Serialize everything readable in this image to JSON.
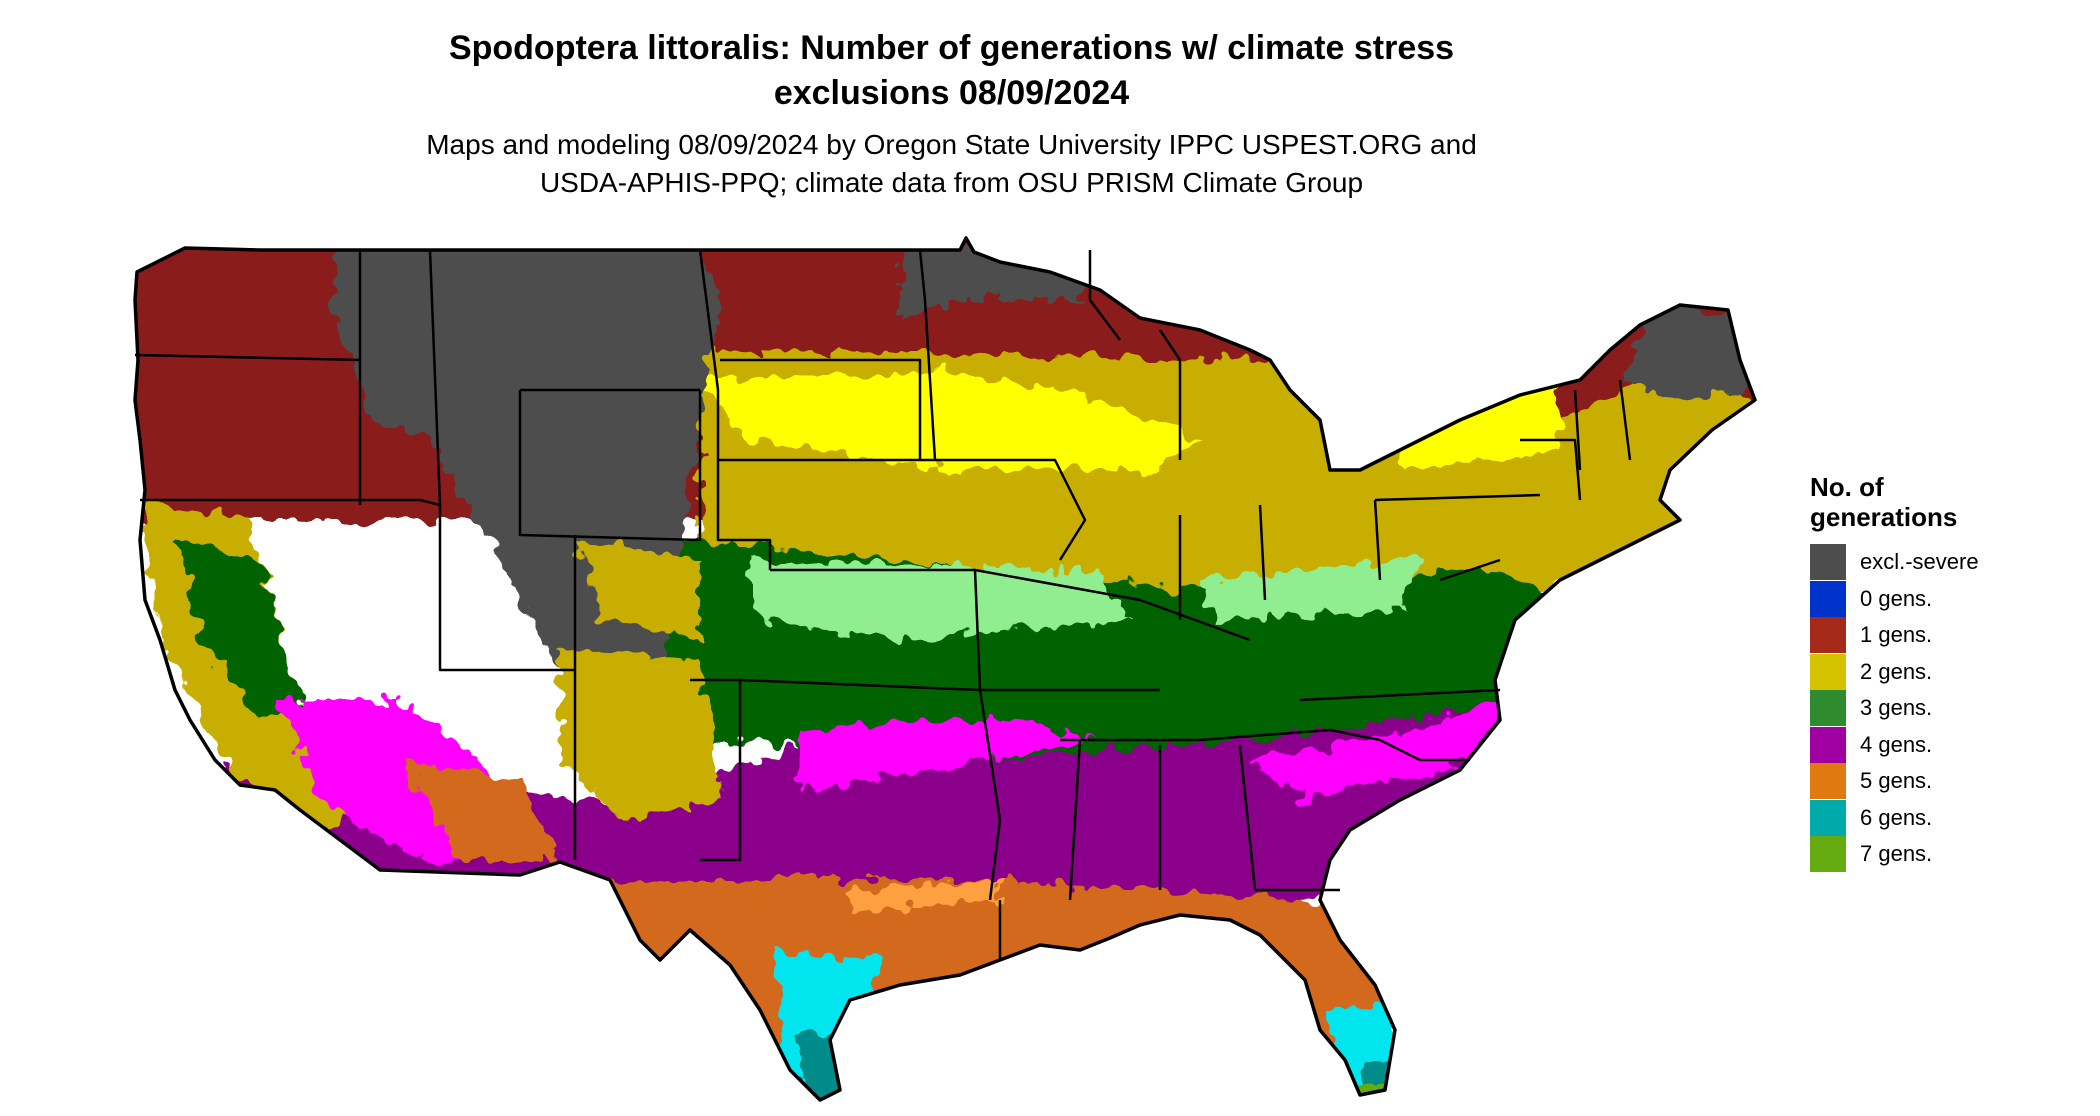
{
  "title": {
    "line1": "Spodoptera littoralis: Number of generations w/ climate stress",
    "line2": "exclusions 08/09/2024"
  },
  "subtitle": {
    "line1": "Maps and modeling 08/09/2024 by Oregon State University IPPC USPEST.ORG and",
    "line2": "USDA-APHIS-PPQ; climate data from OSU PRISM Climate Group"
  },
  "legend": {
    "title_line1": "No. of",
    "title_line2": "generations",
    "items": [
      {
        "label": "excl.-severe",
        "color": "#4d4d4d"
      },
      {
        "label": "0 gens.",
        "color": "#0033cc"
      },
      {
        "label": "1 gens.",
        "color": "#a52a1a"
      },
      {
        "label": "2 gens.",
        "color": "#d4c200"
      },
      {
        "label": "3 gens.",
        "color": "#2e8b2e"
      },
      {
        "label": "4 gens.",
        "color": "#a000a0"
      },
      {
        "label": "5 gens.",
        "color": "#e07a10"
      },
      {
        "label": "6 gens.",
        "color": "#00aaaa"
      },
      {
        "label": "7 gens.",
        "color": "#66aa11"
      }
    ]
  },
  "map_palette": {
    "excluded": "#4d4d4d",
    "gen1": "#8b1a1a",
    "gen2_light": "#ffff00",
    "gen2": "#c8ae00",
    "gen3_light": "#90ee90",
    "gen3": "#006400",
    "gen4_light": "#ff00ff",
    "gen4": "#8b008b",
    "gen5_light": "#ffa040",
    "gen5": "#d2691e",
    "gen6_light": "#00e5ee",
    "gen6": "#008b8b",
    "gen7": "#66aa11",
    "border": "#000000"
  }
}
